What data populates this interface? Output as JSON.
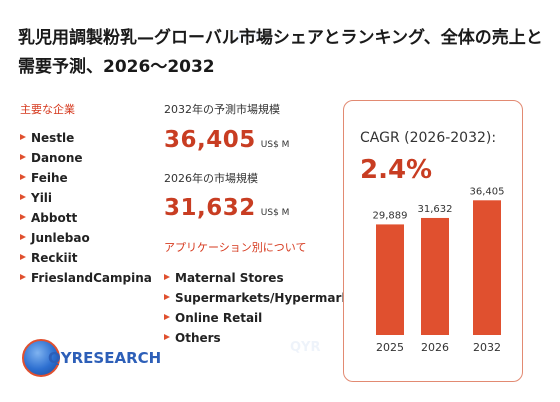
{
  "title": "乳児用調製粉乳—グローバル市場シェアとランキング、全体の売上と需要予測、2026～2032",
  "companies": {
    "label": "主要な企業",
    "items": [
      "Nestle",
      "Danone",
      "Feihe",
      "Yili",
      "Abbott",
      "Junlebao",
      "Reckiit",
      "FrieslandCampina"
    ]
  },
  "market_2032": {
    "label": "2032年の予測市場規模",
    "value": "36,405",
    "unit": "US$ M"
  },
  "market_2026": {
    "label": "2026年の市場規模",
    "value": "31,632",
    "unit": "US$ M"
  },
  "applications": {
    "label": "アプリケーション別について",
    "items": [
      "Maternal Stores",
      "Supermarkets/Hypermarkets",
      "Online Retail",
      "Others"
    ]
  },
  "cagr": {
    "label": "CAGR (2026-2032):",
    "value": "2.4%"
  },
  "logo": {
    "text": "QYRESEARCH"
  },
  "colors": {
    "accent": "#d63a1f",
    "bar": "#e0502f",
    "value": "#c83d22"
  },
  "chart_data": {
    "type": "bar",
    "categories": [
      "2025",
      "2026",
      "2032"
    ],
    "values": [
      29889,
      31632,
      36405
    ],
    "data_labels": [
      "29,889",
      "31,632",
      "36,405"
    ],
    "title": "",
    "xlabel": "",
    "ylabel": "",
    "ylim": [
      0,
      40000
    ]
  }
}
